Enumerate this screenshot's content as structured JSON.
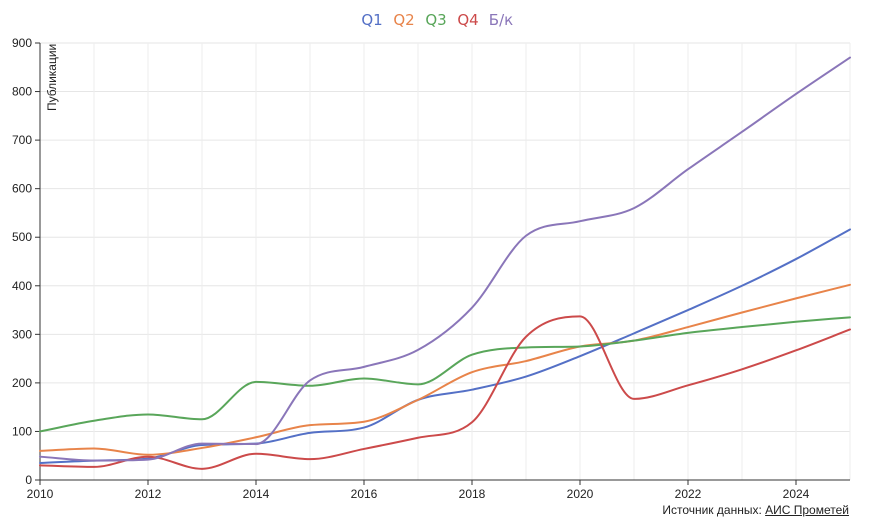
{
  "chart_data": {
    "type": "line",
    "title": "",
    "xlabel": "",
    "ylabel": "Публикации",
    "xlim": [
      2010,
      2025
    ],
    "ylim": [
      0,
      900
    ],
    "xticks": [
      2010,
      2012,
      2014,
      2016,
      2018,
      2020,
      2022,
      2024
    ],
    "yticks": [
      0,
      100,
      200,
      300,
      400,
      500,
      600,
      700,
      800,
      900
    ],
    "grid": true,
    "legend_position": "top-center",
    "x": [
      2010,
      2011,
      2012,
      2013,
      2014,
      2015,
      2016,
      2017,
      2018,
      2019,
      2020,
      2021,
      2022,
      2023,
      2024,
      2025
    ],
    "series": [
      {
        "name": "Q1",
        "color": "#5470c6",
        "values": [
          35,
          40,
          44,
          72,
          75,
          97,
          108,
          165,
          186,
          213,
          255,
          302,
          350,
          400,
          455,
          516
        ]
      },
      {
        "name": "Q2",
        "color": "#e8844a",
        "values": [
          60,
          65,
          52,
          66,
          88,
          113,
          120,
          165,
          222,
          245,
          275,
          287,
          315,
          345,
          374,
          402
        ]
      },
      {
        "name": "Q3",
        "color": "#59a65a",
        "values": [
          100,
          122,
          135,
          125,
          202,
          194,
          209,
          197,
          258,
          273,
          275,
          287,
          303,
          315,
          326,
          335
        ]
      },
      {
        "name": "Q4",
        "color": "#cc4a4a",
        "values": [
          30,
          27,
          48,
          23,
          54,
          43,
          64,
          87,
          119,
          295,
          337,
          167,
          195,
          228,
          267,
          310
        ]
      },
      {
        "name": "Б/к",
        "color": "#8a76b9",
        "values": [
          48,
          40,
          42,
          75,
          74,
          205,
          233,
          268,
          355,
          503,
          533,
          560,
          640,
          717,
          795,
          870
        ]
      }
    ]
  },
  "source": {
    "label": "Источник данных:",
    "link_text": "АИС Прометей"
  }
}
